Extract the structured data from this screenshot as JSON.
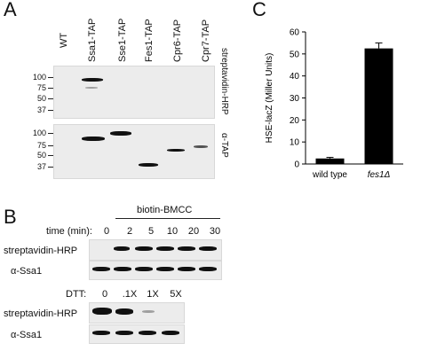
{
  "panelA": {
    "letter": "A",
    "lanes": [
      "WT",
      "Ssa1-TAP",
      "Sse1-TAP",
      "Fes1-TAP",
      "Cpr6-TAP",
      "Cpr7-TAP"
    ],
    "mw_top": [
      "100",
      "75",
      "50",
      "37"
    ],
    "mw_bottom": [
      "100",
      "75",
      "50",
      "37"
    ],
    "blot_top_label": "streptavidin-HRP",
    "blot_bottom_label": "α-TAP"
  },
  "panelB": {
    "letter": "B",
    "treatment": "biotin-BMCC",
    "time_label": "time (min):",
    "times": [
      "0",
      "2",
      "5",
      "10",
      "20",
      "30"
    ],
    "row1": "streptavidin-HRP",
    "row2": "α-Ssa1",
    "dtt_label": "DTT:",
    "dtt": [
      "0",
      ".1X",
      "1X",
      "5X"
    ],
    "row3": "streptavidin-HRP",
    "row4": "α-Ssa1"
  },
  "panelC": {
    "letter": "C",
    "chart_data": {
      "type": "bar",
      "categories": [
        "wild type",
        "fes1Δ"
      ],
      "values": [
        2.5,
        52.5
      ],
      "errors": [
        0.5,
        2.5
      ],
      "ylabel": "HSE-lacZ (Miller Units)",
      "ylim": [
        0,
        60
      ],
      "yticks": [
        "0",
        "10",
        "20",
        "30",
        "40",
        "50",
        "60"
      ],
      "bar_color": "#000000"
    }
  }
}
